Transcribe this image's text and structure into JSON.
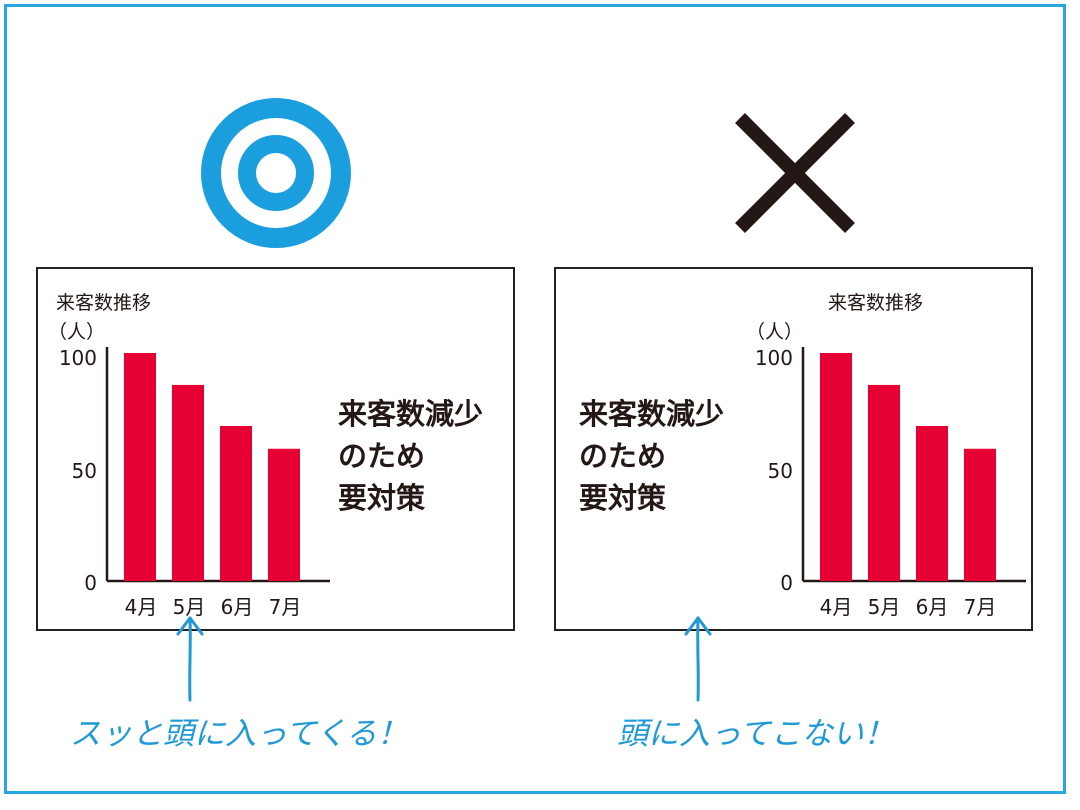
{
  "colors": {
    "frame": "#2aa6df",
    "good_symbol": "#1b9ede",
    "bad_symbol": "#231815",
    "bar": "#e60033",
    "annotation": "#1f9ad6"
  },
  "good": {
    "symbol": "double-circle-icon",
    "chart_title": "来客数推移",
    "chart_unit": "（人）",
    "slogan": [
      "来客数減少",
      "のため",
      "要対策"
    ],
    "caption": "スッと頭に入ってくる！"
  },
  "bad": {
    "symbol": "cross-icon",
    "chart_title": "来客数推移",
    "chart_unit": "（人）",
    "slogan": [
      "来客数減少",
      "のため",
      "要対策"
    ],
    "caption": "頭に入ってこない！"
  },
  "chart_data": [
    {
      "type": "bar",
      "title": "来客数推移",
      "ylabel": "（人）",
      "categories": [
        "4月",
        "5月",
        "6月",
        "7月"
      ],
      "values": [
        100,
        86,
        68,
        58
      ],
      "yticks": [
        0,
        50,
        100
      ],
      "ylim": [
        0,
        100
      ]
    },
    {
      "type": "bar",
      "title": "来客数推移",
      "ylabel": "（人）",
      "categories": [
        "4月",
        "5月",
        "6月",
        "7月"
      ],
      "values": [
        100,
        86,
        68,
        58
      ],
      "yticks": [
        0,
        50,
        100
      ],
      "ylim": [
        0,
        100
      ]
    }
  ]
}
